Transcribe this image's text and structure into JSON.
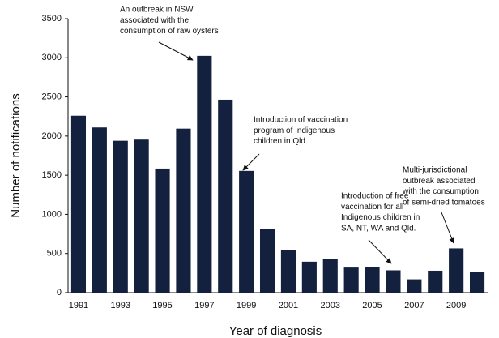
{
  "chart_data": {
    "type": "bar",
    "x_label": "Year of diagnosis",
    "y_label": "Number of notifications",
    "categories": [
      "1991",
      null,
      "1993",
      null,
      "1995",
      null,
      "1997",
      null,
      "1999",
      null,
      "2001",
      null,
      "2003",
      null,
      "2005",
      null,
      "2007",
      null,
      "2009",
      null
    ],
    "values": [
      2260,
      2110,
      1940,
      1955,
      1585,
      2095,
      3025,
      2465,
      1555,
      810,
      540,
      395,
      430,
      320,
      325,
      285,
      170,
      280,
      565,
      265
    ],
    "color": "#13213f",
    "ylim": [
      0,
      3500
    ],
    "yticks": [
      0,
      500,
      1000,
      1500,
      2000,
      2500,
      3000,
      3500
    ],
    "grid": false,
    "annotations": [
      {
        "lines": [
          "An outbreak in NSW",
          "associated with the",
          "consumption of raw oysters"
        ]
      },
      {
        "lines": [
          "Introduction of vaccination",
          "program of Indigenous",
          "children in Qld"
        ]
      },
      {
        "lines": [
          "Introduction of free",
          "vaccination for all",
          "Indigenous children in",
          "SA, NT, WA and Qld."
        ]
      },
      {
        "lines": [
          "Multi-jurisdictional",
          "outbreak associated",
          "with the consumption",
          "of semi-dried tomatoes"
        ]
      }
    ]
  }
}
